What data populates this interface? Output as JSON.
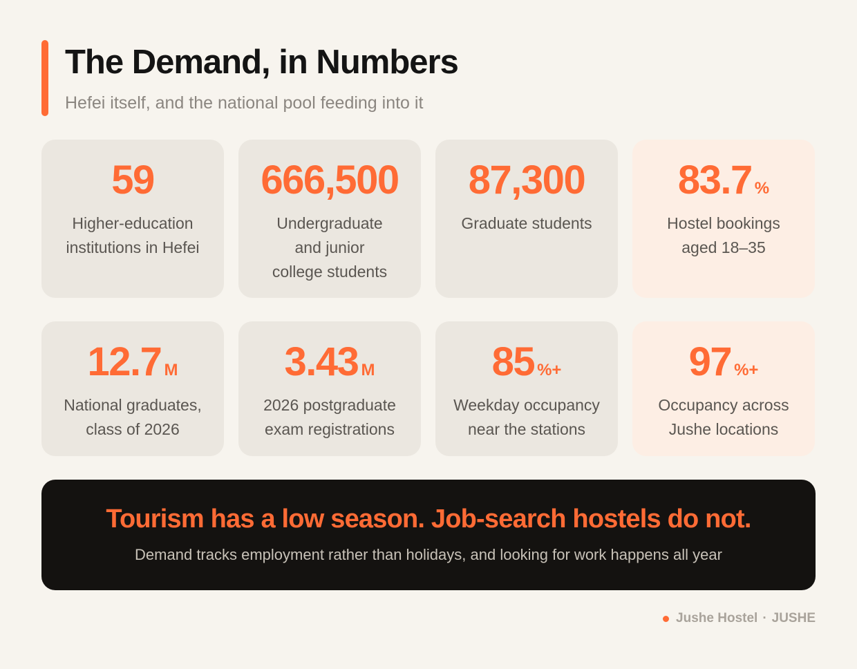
{
  "header": {
    "title": "The Demand, in Numbers",
    "subtitle": "Hefei itself, and the national pool feeding into it"
  },
  "stats": [
    {
      "value": "59",
      "suffix": "",
      "label_lines": [
        "Higher-education",
        "institutions in Hefei"
      ]
    },
    {
      "value": "666,500",
      "suffix": "",
      "label_lines": [
        "Undergraduate",
        "and junior",
        "college students"
      ]
    },
    {
      "value": "87,300",
      "suffix": "",
      "label_lines": [
        "Graduate students"
      ]
    },
    {
      "value": "83.7",
      "suffix": "%",
      "label_lines": [
        "Hostel bookings",
        "aged 18–35"
      ]
    },
    {
      "value": "12.7",
      "suffix": "M",
      "label_lines": [
        "National graduates,",
        "class of 2026"
      ]
    },
    {
      "value": "3.43",
      "suffix": "M",
      "label_lines": [
        "2026 postgraduate",
        "exam registrations"
      ]
    },
    {
      "value": "85",
      "suffix": "%+",
      "label_lines": [
        "Weekday occupancy",
        "near the stations"
      ]
    },
    {
      "value": "97",
      "suffix": "%+",
      "label_lines": [
        "Occupancy across",
        "Jushe locations"
      ]
    }
  ],
  "banner": {
    "headline": "Tourism has a low season. Job-search hostels do not.",
    "subtext": "Demand tracks employment rather than holidays, and looking for work happens all year"
  },
  "footer": {
    "brand": "Jushe Hostel",
    "separator": "·",
    "tag": "JUSHE"
  },
  "colors": {
    "accent": "#ff6b35",
    "background": "#f7f4ee",
    "card": "#ebe7e0",
    "card_highlight": "#fdeee4",
    "banner": "#141210"
  }
}
